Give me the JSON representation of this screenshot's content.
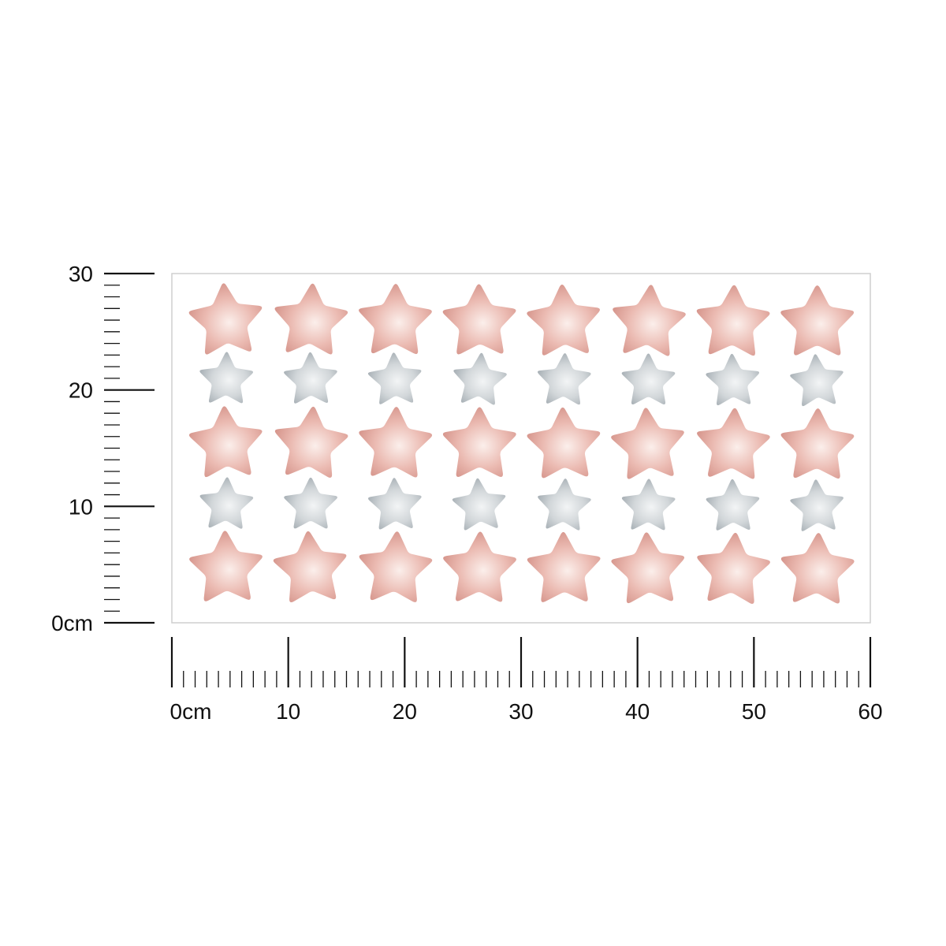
{
  "sheet": {
    "border_color": "#cfcfcf",
    "background": "#ffffff",
    "width_cm": 60,
    "height_cm": 30
  },
  "stickers": {
    "columns": 8,
    "rows": [
      {
        "kind": "large",
        "color": "#e3a99f"
      },
      {
        "kind": "small",
        "color": "#c4cace"
      },
      {
        "kind": "large",
        "color": "#e3a99f"
      },
      {
        "kind": "small",
        "color": "#c4cace"
      },
      {
        "kind": "large",
        "color": "#e3a99f"
      }
    ],
    "large_name": "pink-star",
    "small_name": "grey-star"
  },
  "ruler_x": {
    "labels": [
      "0cm",
      "10",
      "20",
      "30",
      "40",
      "50",
      "60"
    ],
    "values": [
      0,
      10,
      20,
      30,
      40,
      50,
      60
    ],
    "minor_per_major": 10
  },
  "ruler_y": {
    "labels": [
      "0cm",
      "10",
      "20",
      "30"
    ],
    "values": [
      0,
      10,
      20,
      30
    ],
    "minor_per_major": 10
  },
  "colors": {
    "ruler": "#111111",
    "pink_highlight": "#fbeeea",
    "pink_edge": "#d28d83",
    "grey_highlight": "#f2f4f5",
    "grey_edge": "#9fa8ae"
  }
}
